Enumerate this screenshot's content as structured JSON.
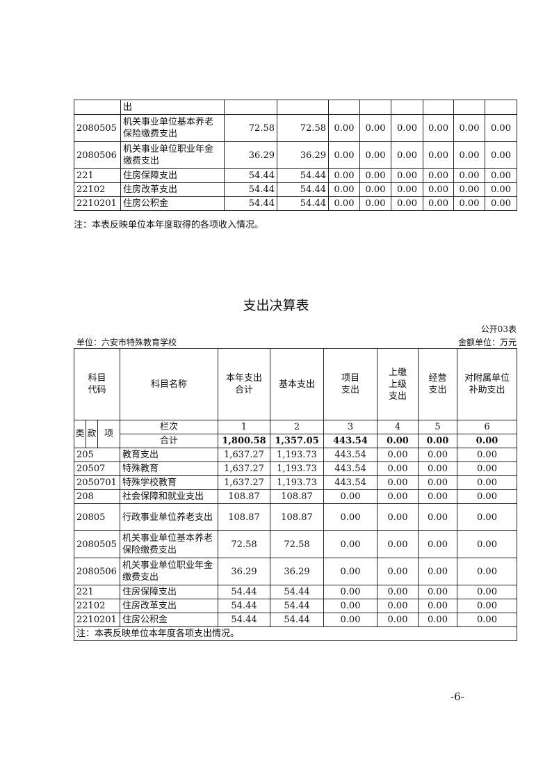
{
  "top_table": {
    "rows": [
      {
        "code": "",
        "name": "出",
        "v": [
          "",
          "",
          "",
          "",
          "",
          "",
          "",
          ""
        ]
      },
      {
        "code": "2080505",
        "name": "机关事业单位基本养老保险缴费支出",
        "v": [
          "72.58",
          "72.58",
          "0.00",
          "0.00",
          "0.00",
          "0.00",
          "0.00",
          "0.00"
        ]
      },
      {
        "code": "2080506",
        "name": "机关事业单位职业年金缴费支出",
        "v": [
          "36.29",
          "36.29",
          "0.00",
          "0.00",
          "0.00",
          "0.00",
          "0.00",
          "0.00"
        ]
      },
      {
        "code": "221",
        "name": "住房保障支出",
        "v": [
          "54.44",
          "54.44",
          "0.00",
          "0.00",
          "0.00",
          "0.00",
          "0.00",
          "0.00"
        ]
      },
      {
        "code": "22102",
        "name": "住房改革支出",
        "v": [
          "54.44",
          "54.44",
          "0.00",
          "0.00",
          "0.00",
          "0.00",
          "0.00",
          "0.00"
        ]
      },
      {
        "code": "2210201",
        "name": "住房公积金",
        "v": [
          "54.44",
          "54.44",
          "0.00",
          "0.00",
          "0.00",
          "0.00",
          "0.00",
          "0.00"
        ]
      }
    ],
    "note": "注：本表反映单位本年度取得的各项收入情况。"
  },
  "expense_table": {
    "title": "支出决算表",
    "table_no": "公开03表",
    "unit": "单位：六安市特殊教育学校",
    "amount_unit": "金额单位：万元",
    "headers": {
      "code": "科目代码",
      "name": "科目名称",
      "cols": [
        "本年支出合计",
        "基本支出",
        "项目支出",
        "上缴上级支出",
        "经营支出",
        "对附属单位补助支出"
      ]
    },
    "sub_headers": [
      "类",
      "款",
      "项"
    ],
    "column_index_label": "栏次",
    "column_index": [
      "1",
      "2",
      "3",
      "4",
      "5",
      "6"
    ],
    "total": {
      "label": "合计",
      "v": [
        "1,800.58",
        "1,357.05",
        "443.54",
        "0.00",
        "0.00",
        "0.00"
      ]
    },
    "rows": [
      {
        "code": "205",
        "name": "教育支出",
        "v": [
          "1,637.27",
          "1,193.73",
          "443.54",
          "0.00",
          "0.00",
          "0.00"
        ]
      },
      {
        "code": "20507",
        "name": "特殊教育",
        "v": [
          "1,637.27",
          "1,193.73",
          "443.54",
          "0.00",
          "0.00",
          "0.00"
        ]
      },
      {
        "code": "2050701",
        "name": "特殊学校教育",
        "v": [
          "1,637.27",
          "1,193.73",
          "443.54",
          "0.00",
          "0.00",
          "0.00"
        ]
      },
      {
        "code": "208",
        "name": "社会保障和就业支出",
        "v": [
          "108.87",
          "108.87",
          "0.00",
          "0.00",
          "0.00",
          "0.00"
        ]
      },
      {
        "code": "20805",
        "name": "行政事业单位养老支出",
        "v": [
          "108.87",
          "108.87",
          "0.00",
          "0.00",
          "0.00",
          "0.00"
        ]
      },
      {
        "code": "2080505",
        "name": "机关事业单位基本养老保险缴费支出",
        "v": [
          "72.58",
          "72.58",
          "0.00",
          "0.00",
          "0.00",
          "0.00"
        ]
      },
      {
        "code": "2080506",
        "name": "机关事业单位职业年金缴费支出",
        "v": [
          "36.29",
          "36.29",
          "0.00",
          "0.00",
          "0.00",
          "0.00"
        ]
      },
      {
        "code": "221",
        "name": "住房保障支出",
        "v": [
          "54.44",
          "54.44",
          "0.00",
          "0.00",
          "0.00",
          "0.00"
        ]
      },
      {
        "code": "22102",
        "name": "住房改革支出",
        "v": [
          "54.44",
          "54.44",
          "0.00",
          "0.00",
          "0.00",
          "0.00"
        ]
      },
      {
        "code": "2210201",
        "name": "住房公积金",
        "v": [
          "54.44",
          "54.44",
          "0.00",
          "0.00",
          "0.00",
          "0.00"
        ]
      }
    ],
    "note": "注：本表反映单位本年度各项支出情况。"
  },
  "page_number": "-6-"
}
